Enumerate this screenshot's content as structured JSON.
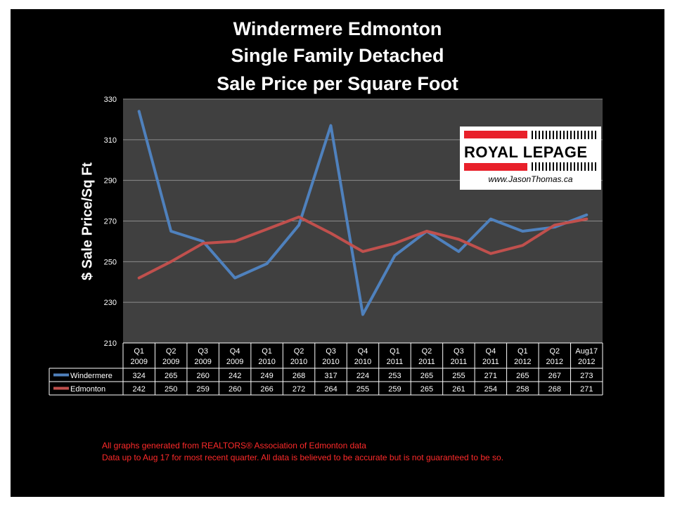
{
  "chart_data": {
    "type": "line",
    "title": [
      "Windermere Edmonton",
      "Single Family Detached",
      "Sale Price per Square Foot"
    ],
    "ylabel": "$ Sale Price/Sq Ft",
    "xlabel": "",
    "ylim": [
      210,
      330
    ],
    "yticks": [
      210,
      230,
      250,
      270,
      290,
      310,
      330
    ],
    "grid": true,
    "categories": [
      [
        "Q1",
        "2009"
      ],
      [
        "Q2",
        "2009"
      ],
      [
        "Q3",
        "2009"
      ],
      [
        "Q4",
        "2009"
      ],
      [
        "Q1",
        "2010"
      ],
      [
        "Q2",
        "2010"
      ],
      [
        "Q3",
        "2010"
      ],
      [
        "Q4",
        "2010"
      ],
      [
        "Q1",
        "2011"
      ],
      [
        "Q2",
        "2011"
      ],
      [
        "Q3",
        "2011"
      ],
      [
        "Q4",
        "2011"
      ],
      [
        "Q1",
        "2012"
      ],
      [
        "Q2",
        "2012"
      ],
      [
        "Aug17",
        "2012"
      ]
    ],
    "series": [
      {
        "name": "Windermere",
        "color": "#4f81bd",
        "values": [
          324,
          265,
          260,
          242,
          249,
          268,
          317,
          224,
          253,
          265,
          255,
          271,
          265,
          267,
          273
        ]
      },
      {
        "name": "Edmonton",
        "color": "#c0504d",
        "values": [
          242,
          250,
          259,
          260,
          266,
          272,
          264,
          255,
          259,
          265,
          261,
          254,
          258,
          268,
          271
        ]
      }
    ],
    "legend_position": "data-table"
  },
  "logo": {
    "name": "ROYAL LEPAGE",
    "url": "www.JasonThomas.ca"
  },
  "footnotes": [
    "All graphs generated from REALTORS® Association of Edmonton data",
    "Data up to Aug 17 for most recent quarter. All data is believed to be accurate but is not guaranteed to be so."
  ],
  "colors": {
    "background": "#000000",
    "plot_area": "#404040",
    "text": "#ffffff",
    "footnote": "#ff2a2a",
    "logo_red": "#e8202a"
  }
}
